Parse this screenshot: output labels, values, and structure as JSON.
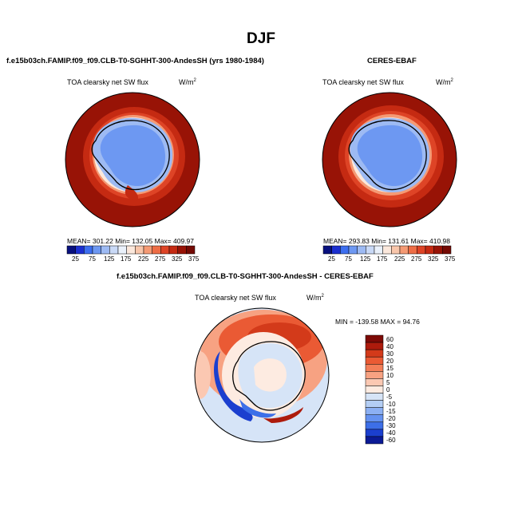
{
  "title": "DJF",
  "panels": [
    {
      "header": "f.e15b03ch.FAMIP.f09_f09.CLB-T0-SGHHT-300-AndesSH (yrs 1980-1984)",
      "var_name": "TOA clearsky net SW flux",
      "units": "W/m",
      "units_exp": "2",
      "stats": "MEAN= 301.22   Min= 132.05   Max= 409.97",
      "colorbar_ticks": [
        "25",
        "75",
        "125",
        "175",
        "225",
        "275",
        "325",
        "375"
      ]
    },
    {
      "header": "CERES-EBAF",
      "var_name": "TOA clearsky net SW flux",
      "units": "W/m",
      "units_exp": "2",
      "stats": "MEAN= 293.83   Min= 131.61   Max= 410.98",
      "colorbar_ticks": [
        "25",
        "75",
        "125",
        "175",
        "225",
        "275",
        "325",
        "375"
      ]
    }
  ],
  "diff": {
    "header": "f.e15b03ch.FAMIP.f09_f09.CLB-T0-SGHHT-300-AndesSH - CERES-EBAF",
    "var_name": "TOA clearsky net SW flux",
    "units": "W/m",
    "units_exp": "2",
    "stats": "MIN = -139.58  MAX =  94.76",
    "colorbar_labels": [
      "60",
      "40",
      "30",
      "20",
      "15",
      "10",
      "5",
      "0",
      "-5",
      "-10",
      "-15",
      "-20",
      "-30",
      "-40",
      "-60"
    ]
  },
  "colors": {
    "seq": [
      "#08107e",
      "#1b2fd0",
      "#3d6ff0",
      "#6d98f2",
      "#9dbaf3",
      "#c9d9f6",
      "#eaf1fb",
      "#fbe8dc",
      "#f8c6ab",
      "#f59a74",
      "#ee6d46",
      "#de4426",
      "#c52a12",
      "#981306",
      "#740a04"
    ],
    "div": [
      "#7d0a06",
      "#ad1b0c",
      "#d33a1a",
      "#ea5a34",
      "#f37e58",
      "#f7a282",
      "#fbc8b2",
      "#fdebe1",
      "#d6e4f7",
      "#b4cef4",
      "#8cb0f3",
      "#6592f0",
      "#3d6fe8",
      "#1b3fcf",
      "#0b1a96"
    ]
  }
}
